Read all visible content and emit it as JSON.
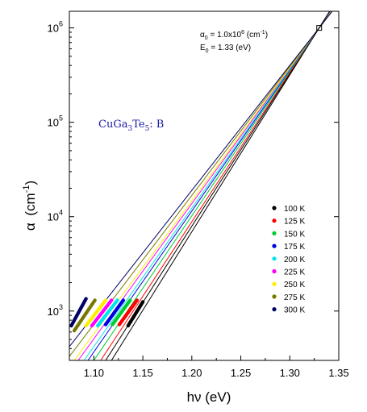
{
  "chart_data": {
    "type": "line",
    "xlabel": "hν (eV)",
    "ylabel_main": "α",
    "ylabel_unit": "(cm",
    "ylabel_unit_exp": "-1",
    "ylabel_unit_close": ")",
    "xlim": [
      1.075,
      1.35
    ],
    "ylim": [
      300,
      1500000
    ],
    "yscale": "log",
    "xticks": [
      1.1,
      1.15,
      1.2,
      1.25,
      1.3,
      1.35
    ],
    "xtick_labels": [
      "1.10",
      "1.15",
      "1.20",
      "1.25",
      "1.30",
      "1.35"
    ],
    "yticks": [
      1000,
      10000,
      100000,
      1000000
    ],
    "ytick_base": "10",
    "ytick_exps": [
      "3",
      "4",
      "5",
      "6"
    ],
    "sample_label": {
      "main": "CuGa",
      "sub1": "3",
      "mid": "Te",
      "sub2": "5",
      "end": ": B"
    },
    "annotation": {
      "alpha0_prefix": "α",
      "alpha0_sub": "0",
      "alpha0_mid": " = 1.0x10",
      "alpha0_exp": "6",
      "alpha0_unit": " (cm",
      "alpha0_unit_exp": "-1",
      "alpha0_unit_close": ")",
      "e0_prefix": "E",
      "e0_sub": "0",
      "e0_rest": " = 1.33 (eV)"
    },
    "convergence_point": {
      "x": 1.33,
      "y": 1000000
    },
    "legend_position": "right",
    "series": [
      {
        "name": "100 K",
        "color": "#000000",
        "line_low": [
          1.112,
          300
        ],
        "data_x": [
          1.135,
          1.15
        ],
        "data_y": [
          700,
          1250
        ]
      },
      {
        "name": "125 K",
        "color": "#ff0000",
        "line_low": [
          1.107,
          300
        ],
        "data_x": [
          1.126,
          1.144
        ],
        "data_y": [
          720,
          1300
        ]
      },
      {
        "name": "150 K",
        "color": "#00cc33",
        "line_low": [
          1.1,
          300
        ],
        "data_x": [
          1.119,
          1.137
        ],
        "data_y": [
          720,
          1300
        ]
      },
      {
        "name": "175 K",
        "color": "#0000dd",
        "line_low": [
          1.094,
          300
        ],
        "data_x": [
          1.112,
          1.13
        ],
        "data_y": [
          720,
          1300
        ]
      },
      {
        "name": "200 K",
        "color": "#00e5ee",
        "line_low": [
          1.09,
          300
        ],
        "data_x": [
          1.104,
          1.124
        ],
        "data_y": [
          700,
          1300
        ]
      },
      {
        "name": "225 K",
        "color": "#ff00ff",
        "line_low": [
          1.084,
          300
        ],
        "data_x": [
          1.098,
          1.118
        ],
        "data_y": [
          700,
          1300
        ]
      },
      {
        "name": "250 K",
        "color": "#ffee00",
        "line_low": [
          1.08,
          300
        ],
        "data_x": [
          1.092,
          1.112
        ],
        "data_y": [
          700,
          1300
        ]
      },
      {
        "name": "275 K",
        "color": "#777700",
        "line_low": [
          1.075,
          330
        ],
        "data_x": [
          1.08,
          1.101
        ],
        "data_y": [
          620,
          1300
        ]
      },
      {
        "name": "300 K",
        "color": "#000066",
        "line_low": [
          1.075,
          420
        ],
        "data_x": [
          1.077,
          1.092
        ],
        "data_y": [
          700,
          1350
        ]
      }
    ],
    "extra_line": {
      "color": "#000000",
      "line_low": [
        1.118,
        300
      ]
    }
  }
}
